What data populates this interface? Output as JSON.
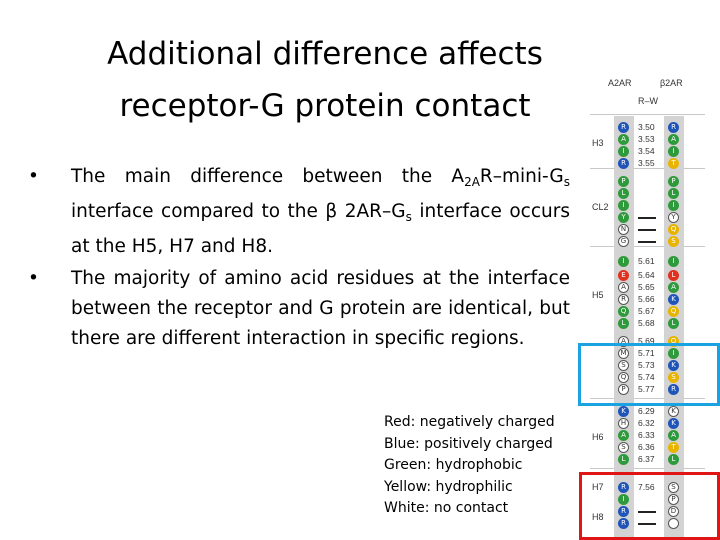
{
  "title": {
    "line1": "Additional difference affects",
    "line2": "receptor-G protein contact"
  },
  "bullets": {
    "b1": {
      "dot": "•",
      "pre": "The main difference between the A",
      "sub1": "2A",
      "mid1": "R–mini-G",
      "sub2": "s",
      "mid2": " interface compared to the β 2AR–G",
      "sub3": "s",
      "post": " interface occurs at the H5, H7 and H8."
    },
    "b2": {
      "dot": "•",
      "text": "The majority of amino acid residues at the interface between the receptor and G protein are identical, but there are different interaction in  specific regions."
    }
  },
  "legend": {
    "red": "Red: negatively charged",
    "blue": "Blue: positively charged",
    "green": "Green: hydrophobic",
    "yellow": "Yellow: hydrophilic",
    "white": "White: no contact"
  },
  "figure": {
    "header_a": "A2AR",
    "header_b": "β2AR",
    "header_mid": "R–W",
    "sections": [
      "H3",
      "CL2",
      "H5",
      "H6",
      "H7",
      "H8"
    ],
    "rows": [
      {
        "a": "R",
        "ac": "blue",
        "num": "3.50",
        "b": "R",
        "bc": "blue"
      },
      {
        "a": "A",
        "ac": "green",
        "num": "3.53",
        "b": "A",
        "bc": "green"
      },
      {
        "a": "I",
        "ac": "green",
        "num": "3.54",
        "b": "I",
        "bc": "green"
      },
      {
        "a": "R",
        "ac": "blue",
        "num": "3.55",
        "b": "T",
        "bc": "yellow"
      },
      {
        "a": "P",
        "ac": "green",
        "num": "",
        "b": "P",
        "bc": "green"
      },
      {
        "a": "L",
        "ac": "green",
        "num": "",
        "b": "L",
        "bc": "green"
      },
      {
        "a": "I",
        "ac": "green",
        "num": "",
        "b": "I",
        "bc": "green"
      },
      {
        "a": "Y",
        "ac": "green",
        "num": "",
        "b": "Y",
        "bc": "white"
      },
      {
        "a": "N",
        "ac": "white",
        "num": "",
        "b": "Q",
        "bc": "yellow"
      },
      {
        "a": "G",
        "ac": "white",
        "num": "",
        "b": "S",
        "bc": "yellow"
      },
      {
        "a": "I",
        "ac": "green",
        "num": "5.61",
        "b": "I",
        "bc": "green"
      },
      {
        "a": "E",
        "ac": "red",
        "num": "5.64",
        "b": "L",
        "bc": "red"
      },
      {
        "a": "A",
        "ac": "white",
        "num": "5.65",
        "b": "A",
        "bc": "green"
      },
      {
        "a": "R",
        "ac": "white",
        "num": "5.66",
        "b": "K",
        "bc": "blue"
      },
      {
        "a": "Q",
        "ac": "green",
        "num": "5.67",
        "b": "Q",
        "bc": "yellow"
      },
      {
        "a": "L",
        "ac": "green",
        "num": "5.68",
        "b": "L",
        "bc": "green"
      },
      {
        "a": "A",
        "ac": "white",
        "num": "5.69",
        "b": "Q",
        "bc": "yellow"
      },
      {
        "a": "M",
        "ac": "white",
        "num": "5.71",
        "b": "I",
        "bc": "green"
      },
      {
        "a": "S",
        "ac": "white",
        "num": "5.73",
        "b": "K",
        "bc": "blue"
      },
      {
        "a": "Q",
        "ac": "white",
        "num": "5.74",
        "b": "S",
        "bc": "yellow"
      },
      {
        "a": "P",
        "ac": "white",
        "num": "5.77",
        "b": "R",
        "bc": "blue"
      },
      {
        "a": "K",
        "ac": "blue",
        "num": "6.29",
        "b": "K",
        "bc": "white"
      },
      {
        "a": "H",
        "ac": "white",
        "num": "6.32",
        "b": "K",
        "bc": "blue"
      },
      {
        "a": "A",
        "ac": "green",
        "num": "6.33",
        "b": "A",
        "bc": "green"
      },
      {
        "a": "S",
        "ac": "white",
        "num": "6.36",
        "b": "T",
        "bc": "yellow"
      },
      {
        "a": "L",
        "ac": "green",
        "num": "6.37",
        "b": "L",
        "bc": "green"
      },
      {
        "a": "R",
        "ac": "blue",
        "num": "7.56",
        "b": "S",
        "bc": "white"
      },
      {
        "a": "I",
        "ac": "green",
        "num": "",
        "b": "P",
        "bc": "white"
      },
      {
        "a": "R",
        "ac": "blue",
        "num": "",
        "b": "D",
        "bc": "white"
      },
      {
        "a": "R",
        "ac": "blue",
        "num": "",
        "b": "",
        "bc": "white"
      }
    ],
    "dash_rows": [
      7,
      8,
      9,
      28,
      29
    ]
  }
}
